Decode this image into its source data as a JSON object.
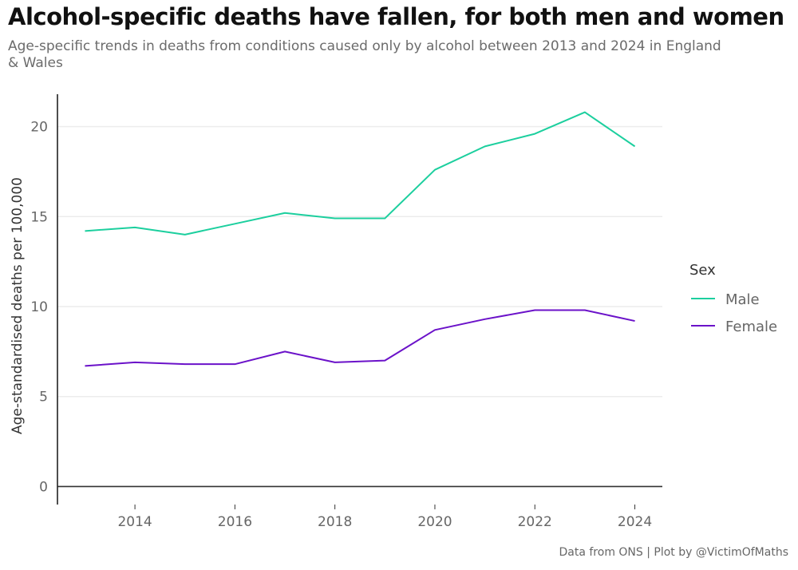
{
  "title": "Alcohol-specific deaths have fallen, for both men and women",
  "subtitle": "Age-specific trends in deaths from conditions caused only by alcohol between 2013 and 2024 in England & Wales",
  "caption": "Data from ONS | Plot by @VictimOfMaths",
  "chart_data": {
    "type": "line",
    "title": "Alcohol-specific deaths have fallen, for both men and women",
    "xlabel": "",
    "ylabel": "Age-standardised deaths per 100,000",
    "x": [
      2013,
      2014,
      2015,
      2016,
      2017,
      2018,
      2019,
      2020,
      2021,
      2022,
      2023,
      2024
    ],
    "xticks": [
      "2014",
      "2016",
      "2018",
      "2020",
      "2022",
      "2024"
    ],
    "yticks": [
      "0",
      "5",
      "10",
      "15",
      "20"
    ],
    "ylim": [
      -1,
      21.8
    ],
    "xlim": [
      2012.45,
      2024.55
    ],
    "grid": "horizontal",
    "legend_title": "Sex",
    "legend_position": "right",
    "series": [
      {
        "name": "Male",
        "color": "#1ccf9e",
        "values": [
          14.2,
          14.4,
          14.0,
          14.6,
          15.2,
          14.9,
          14.9,
          17.6,
          18.9,
          19.6,
          20.8,
          18.9
        ]
      },
      {
        "name": "Female",
        "color": "#6b12c9",
        "values": [
          6.7,
          6.9,
          6.8,
          6.8,
          7.5,
          6.9,
          7.0,
          8.7,
          9.3,
          9.8,
          9.8,
          9.2
        ]
      }
    ]
  }
}
